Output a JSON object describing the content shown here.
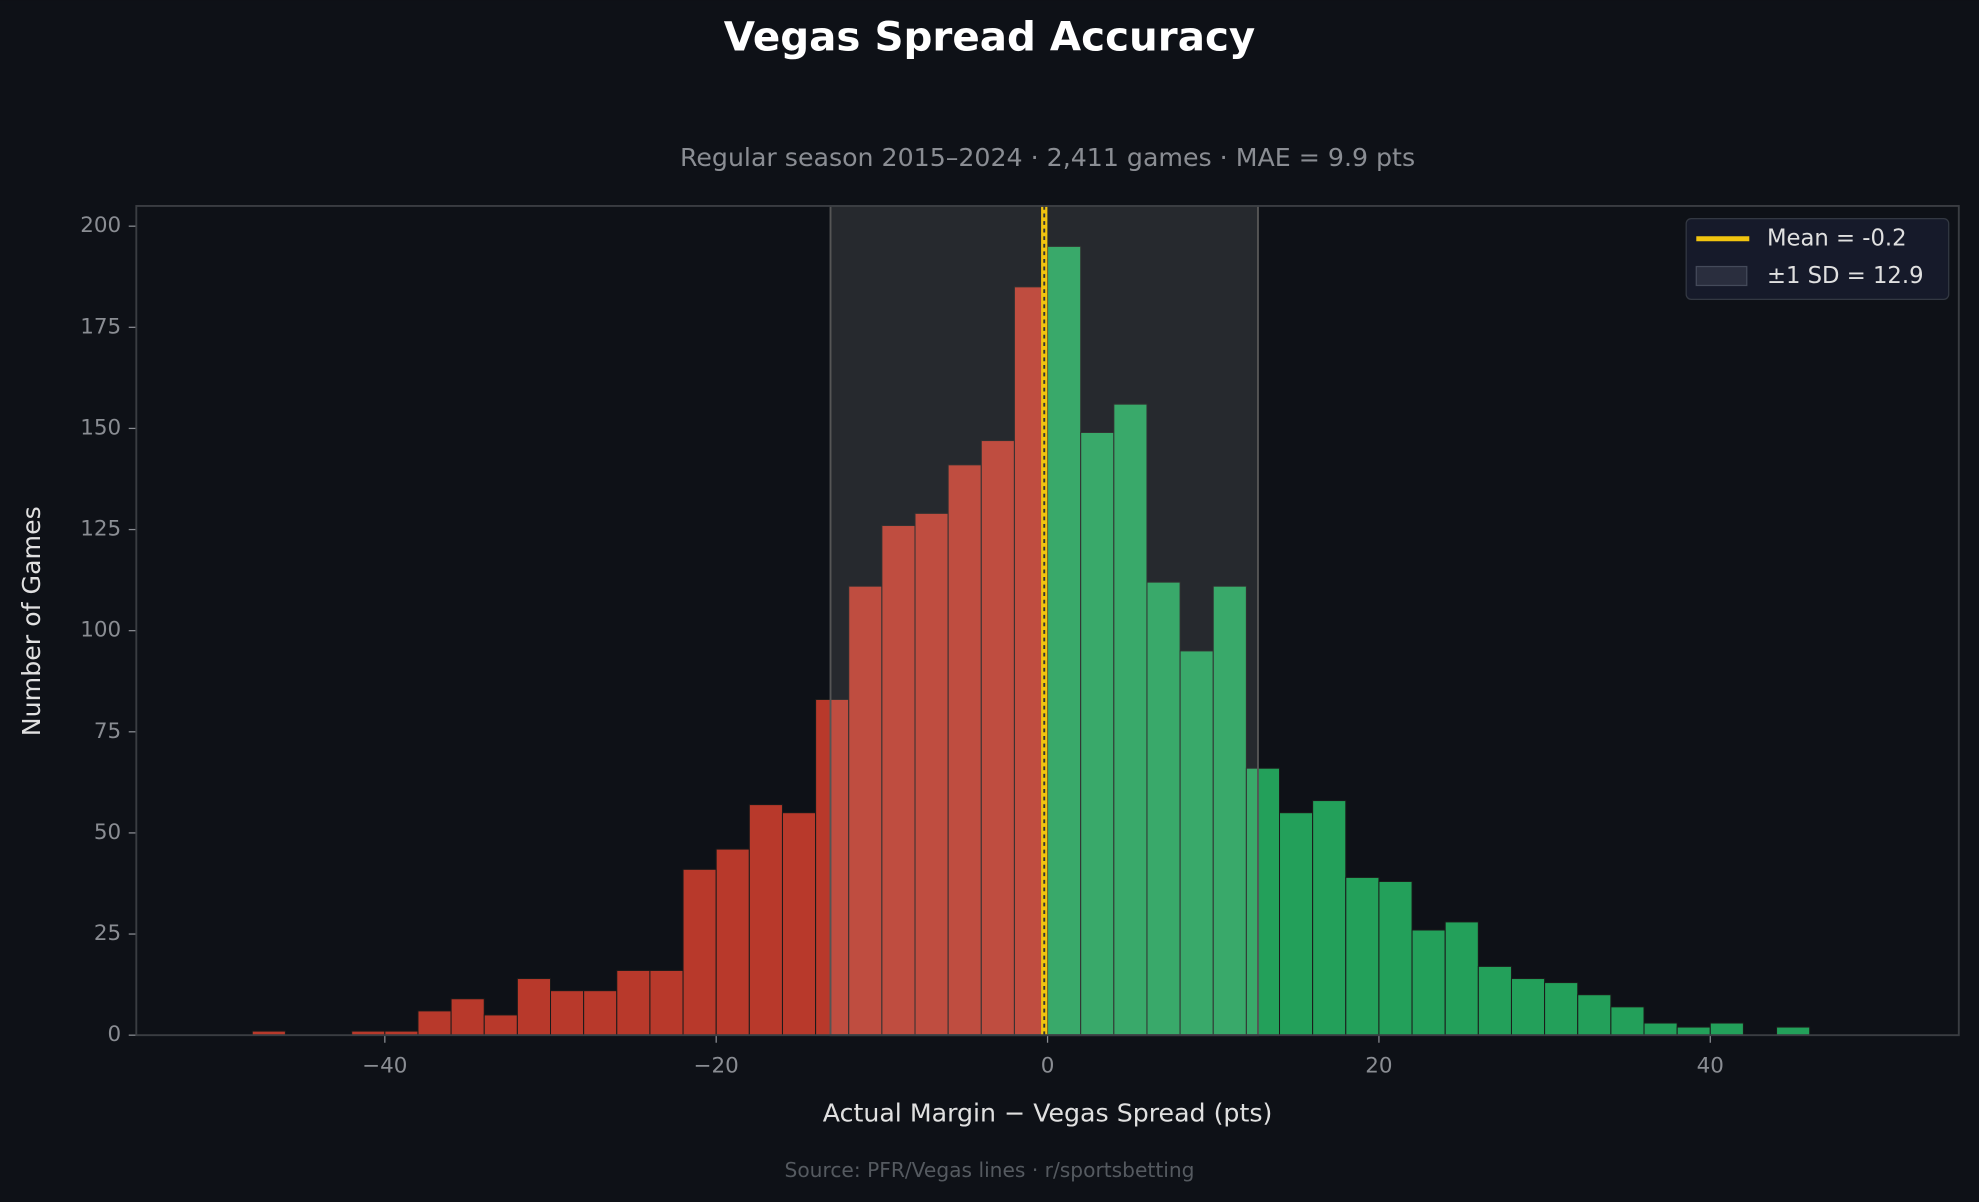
{
  "chart_data": {
    "type": "histogram",
    "title": "Vegas Spread Accuracy",
    "subtitle": "Regular season 2015–2024 · 2,411 games · MAE = 9.9 pts",
    "x_label": "Actual Margin − Vegas Spread (pts)",
    "y_label": "Number of Games",
    "source": "Source: PFR/Vegas lines · r/sportsbetting",
    "bins": [
      -48,
      -46,
      -44,
      -42,
      -40,
      -38,
      -36,
      -34,
      -32,
      -30,
      -28,
      -26,
      -24,
      -22,
      -20,
      -18,
      -16,
      -14,
      -12,
      -10,
      -8,
      -6,
      -4,
      -2,
      0,
      2,
      4,
      6,
      8,
      10,
      12,
      14,
      16,
      18,
      20,
      22,
      24,
      26,
      28,
      30,
      32,
      34,
      36,
      38,
      40,
      42,
      44,
      46
    ],
    "values": [
      1,
      0,
      0,
      1,
      1,
      6,
      9,
      5,
      14,
      11,
      11,
      16,
      16,
      41,
      46,
      57,
      55,
      83,
      111,
      126,
      129,
      141,
      147,
      185,
      195,
      149,
      156,
      112,
      95,
      111,
      66,
      55,
      58,
      39,
      38,
      26,
      28,
      17,
      14,
      13,
      10,
      7,
      3,
      2,
      3,
      0,
      2
    ],
    "color_below": "#b8392b",
    "color_above": "#23a05a",
    "mean": -0.2,
    "mean_color": "#f1c40f",
    "mean_label": "Mean = -0.2",
    "sd": 12.9,
    "sd_label": "±1 SD = 12.9",
    "xlim": [
      -55,
      55
    ],
    "xticks": [
      {
        "value": -40,
        "label": "−40"
      },
      {
        "value": -20,
        "label": "−20"
      },
      0,
      20,
      40
    ],
    "ylim": [
      0,
      205
    ],
    "yticks": [
      0,
      25,
      50,
      75,
      100,
      125,
      150,
      175,
      200
    ],
    "legend": "upper right"
  }
}
